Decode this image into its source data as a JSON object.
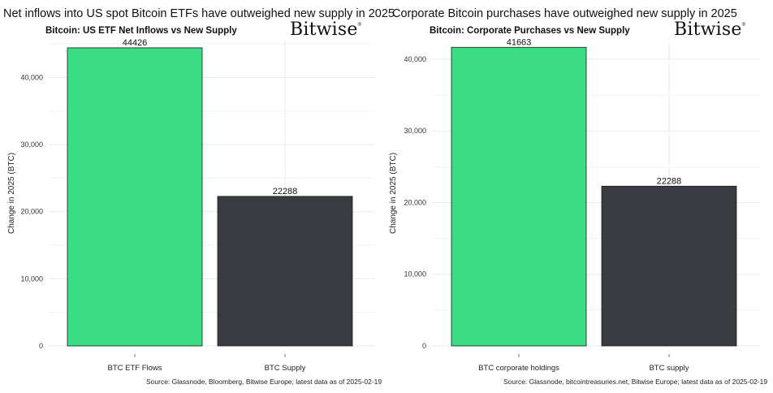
{
  "panels": [
    {
      "headline": "Net inflows into US spot Bitcoin ETFs have outweighed new supply in 2025",
      "logo": "Bitwise",
      "source": "Source: Glassnode, Bloomberg, Bitwise Europe; latest data as of 2025-02-19"
    },
    {
      "headline": "Corporate Bitcoin purchases have outweighed new supply in 2025",
      "logo": "Bitwise",
      "source": "Source: Glassnode, bitcointreasuries.net, Bitwise Europe; latest data as of 2025-02-19"
    }
  ],
  "colors": {
    "green": "#3ADC84",
    "dark": "#383C40",
    "grid": "#EBEBEB",
    "outline": "#1A1A1A"
  },
  "chart_data": [
    {
      "type": "bar",
      "title": "Bitcoin: US ETF Net Inflows vs New Supply",
      "categories": [
        "BTC ETF Flows",
        "BTC Supply"
      ],
      "values": [
        44426,
        22288
      ],
      "data_labels": [
        "44426",
        "22288"
      ],
      "bar_colors": [
        "#3ADC84",
        "#383C40"
      ],
      "xlabel": "",
      "ylabel": "Change in 2025 (BTC)",
      "ylim": [
        0,
        45500
      ],
      "yticks": [
        0,
        10000,
        20000,
        30000,
        40000
      ],
      "ytick_labels": [
        "0",
        "10,000",
        "20,000",
        "30,000",
        "40,000"
      ],
      "grid": true,
      "legend": "none"
    },
    {
      "type": "bar",
      "title": "Bitcoin: Corporate Purchases vs New Supply",
      "categories": [
        "BTC corporate holdings",
        "BTC supply"
      ],
      "values": [
        41663,
        22288
      ],
      "data_labels": [
        "41663",
        "22288"
      ],
      "bar_colors": [
        "#3ADC84",
        "#383C40"
      ],
      "xlabel": "",
      "ylabel": "Change in 2025 (BTC)",
      "ylim": [
        0,
        42600
      ],
      "yticks": [
        0,
        10000,
        20000,
        30000,
        40000
      ],
      "ytick_labels": [
        "0",
        "10,000",
        "20,000",
        "30,000",
        "40,000"
      ],
      "grid": true,
      "legend": "none"
    }
  ]
}
